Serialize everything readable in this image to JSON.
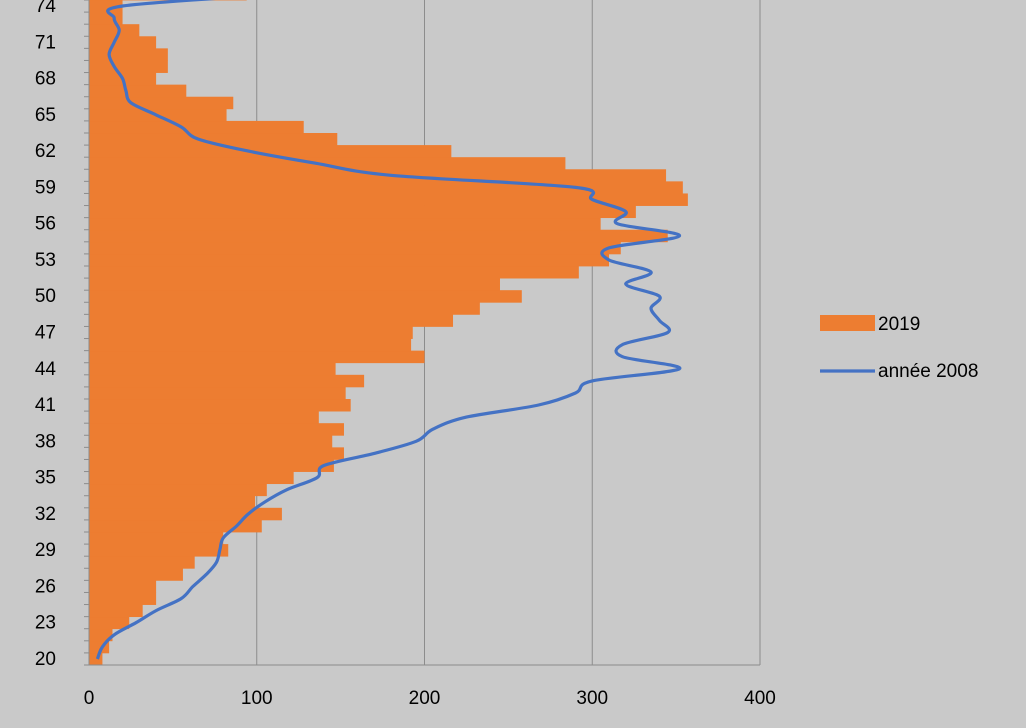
{
  "chart_data": {
    "type": "bar",
    "orientation": "horizontal",
    "title": "",
    "xlabel": "",
    "ylabel": "",
    "xlim": [
      0,
      400
    ],
    "x_ticks": [
      0,
      100,
      200,
      300,
      400
    ],
    "ylim": [
      20,
      75
    ],
    "y_tick_labels": [
      20,
      23,
      26,
      29,
      32,
      35,
      38,
      41,
      44,
      47,
      50,
      53,
      56,
      59,
      62,
      65,
      68,
      71,
      74
    ],
    "grid": "vertical",
    "legend_position": "right",
    "categories": [
      20,
      21,
      22,
      23,
      24,
      25,
      26,
      27,
      28,
      29,
      30,
      31,
      32,
      33,
      34,
      35,
      36,
      37,
      38,
      39,
      40,
      41,
      42,
      43,
      44,
      45,
      46,
      47,
      48,
      49,
      50,
      51,
      52,
      53,
      54,
      55,
      56,
      57,
      58,
      59,
      60,
      61,
      62,
      63,
      64,
      65,
      66,
      67,
      68,
      69,
      70,
      71,
      72,
      73,
      74,
      75
    ],
    "series": [
      {
        "name": "2019",
        "kind": "bar",
        "color": "#ed7d31",
        "values": [
          8,
          12,
          14,
          24,
          32,
          40,
          40,
          56,
          63,
          83,
          80,
          103,
          115,
          99,
          106,
          122,
          146,
          152,
          145,
          152,
          137,
          156,
          153,
          164,
          147,
          200,
          192,
          193,
          217,
          233,
          258,
          245,
          292,
          310,
          317,
          345,
          305,
          326,
          357,
          354,
          344,
          284,
          216,
          148,
          128,
          82,
          86,
          58,
          40,
          47,
          47,
          40,
          30,
          20,
          20,
          94
        ]
      },
      {
        "name": "année 2008",
        "kind": "line",
        "color": "#4472c4",
        "values": [
          5,
          8,
          15,
          28,
          40,
          55,
          62,
          70,
          76,
          78,
          80,
          88,
          95,
          105,
          118,
          136,
          140,
          170,
          195,
          205,
          225,
          268,
          290,
          300,
          352,
          318,
          318,
          345,
          340,
          335,
          340,
          320,
          335,
          310,
          310,
          352,
          315,
          320,
          300,
          290,
          180,
          135,
          95,
          65,
          55,
          40,
          25,
          22,
          20,
          15,
          12,
          15,
          18,
          15,
          20,
          115
        ]
      }
    ]
  }
}
